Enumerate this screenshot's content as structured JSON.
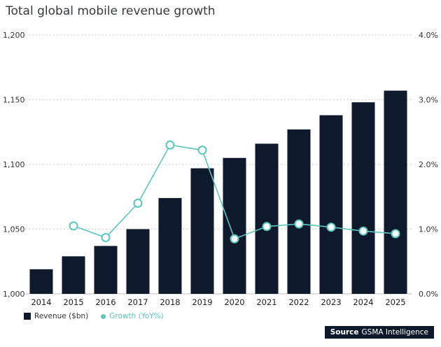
{
  "title": "Total global mobile revenue growth",
  "legend": {
    "bar": "Revenue ($bn)",
    "line": "Growth (YoY%)"
  },
  "source": {
    "label": "Source",
    "name": "GSMA Intelligence"
  },
  "colors": {
    "bar": "#0e1a2b",
    "line": "#5cc5be",
    "grid": "#cfcfcf"
  },
  "chart_data": {
    "type": "bar",
    "categories": [
      "2014",
      "2015",
      "2016",
      "2017",
      "2018",
      "2019",
      "2020",
      "2021",
      "2022",
      "2023",
      "2024",
      "2025"
    ],
    "series": [
      {
        "name": "Revenue ($bn)",
        "type": "bar",
        "axis": "left",
        "values": [
          1019,
          1029,
          1037,
          1050,
          1074,
          1097,
          1105,
          1116,
          1127,
          1138,
          1148,
          1157
        ]
      },
      {
        "name": "Growth (YoY%)",
        "type": "line",
        "axis": "right",
        "values": [
          null,
          1.05,
          0.87,
          1.4,
          2.3,
          2.22,
          0.85,
          1.04,
          1.08,
          1.03,
          0.97,
          0.93
        ]
      }
    ],
    "y_left": {
      "min": 1000,
      "max": 1200,
      "ticks": [
        "1,000",
        "1,050",
        "1,100",
        "1,150",
        "1,200"
      ]
    },
    "y_right": {
      "min": 0,
      "max": 4,
      "ticks": [
        "0.0%",
        "1.0%",
        "2.0%",
        "3.0%",
        "4.0%"
      ]
    },
    "grid": true,
    "legend_position": "bottom-left"
  }
}
